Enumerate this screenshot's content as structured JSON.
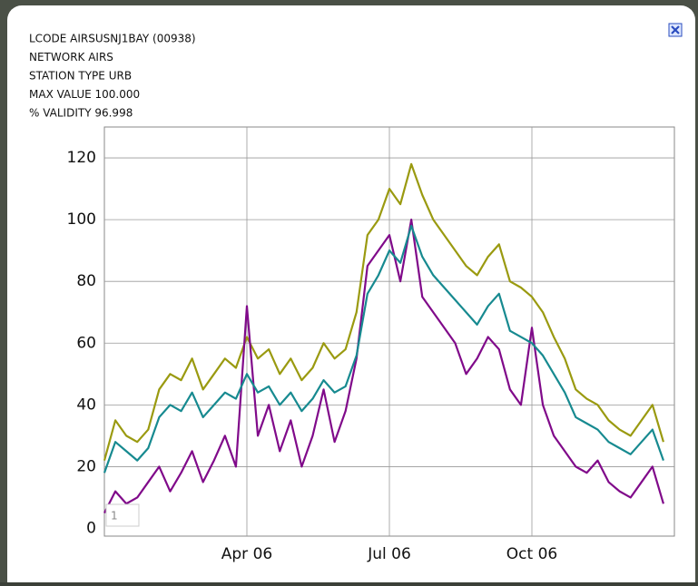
{
  "info": [
    "LCODE AIRSUSNJ1BAY (00938)",
    "NETWORK AIRS",
    "STATION TYPE URB",
    "MAX VALUE 100.000",
    "% VALIDITY 96.998"
  ],
  "counter": "1",
  "chart_data": {
    "type": "line",
    "categories": [
      null,
      null,
      null,
      null,
      null,
      null,
      null,
      null,
      null,
      null,
      null,
      null,
      null,
      "Apr 06",
      null,
      null,
      null,
      null,
      null,
      null,
      null,
      null,
      null,
      null,
      null,
      null,
      "Jul 06",
      null,
      null,
      null,
      null,
      null,
      null,
      null,
      null,
      null,
      null,
      null,
      null,
      "Oct 06",
      null,
      null,
      null,
      null,
      null,
      null,
      null,
      null,
      null,
      null,
      null,
      null
    ],
    "series": [
      {
        "color": "#9a9a10",
        "values": [
          22,
          35,
          30,
          28,
          32,
          45,
          50,
          48,
          55,
          45,
          50,
          55,
          52,
          62,
          55,
          58,
          50,
          55,
          48,
          52,
          60,
          55,
          58,
          70,
          95,
          100,
          110,
          105,
          118,
          108,
          100,
          95,
          90,
          85,
          82,
          88,
          92,
          80,
          78,
          75,
          70,
          62,
          55,
          45,
          42,
          40,
          35,
          32,
          30,
          35,
          40,
          28
        ]
      },
      {
        "color": "#800a8a",
        "values": [
          5,
          12,
          8,
          10,
          15,
          20,
          12,
          18,
          25,
          15,
          22,
          30,
          20,
          72,
          30,
          40,
          25,
          35,
          20,
          30,
          45,
          28,
          38,
          55,
          85,
          90,
          95,
          80,
          100,
          75,
          70,
          65,
          60,
          50,
          55,
          62,
          58,
          45,
          40,
          65,
          40,
          30,
          25,
          20,
          18,
          22,
          15,
          12,
          10,
          15,
          20,
          8
        ]
      },
      {
        "color": "#178a90",
        "values": [
          18,
          28,
          25,
          22,
          26,
          36,
          40,
          38,
          44,
          36,
          40,
          44,
          42,
          50,
          44,
          46,
          40,
          44,
          38,
          42,
          48,
          44,
          46,
          56,
          76,
          82,
          90,
          86,
          98,
          88,
          82,
          78,
          74,
          70,
          66,
          72,
          76,
          64,
          62,
          60,
          56,
          50,
          44,
          36,
          34,
          32,
          28,
          26,
          24,
          28,
          32,
          22
        ]
      }
    ],
    "ylim": [
      -2.5,
      130
    ],
    "yticks": [
      0,
      20,
      40,
      60,
      80,
      100,
      120
    ],
    "grid": true
  }
}
